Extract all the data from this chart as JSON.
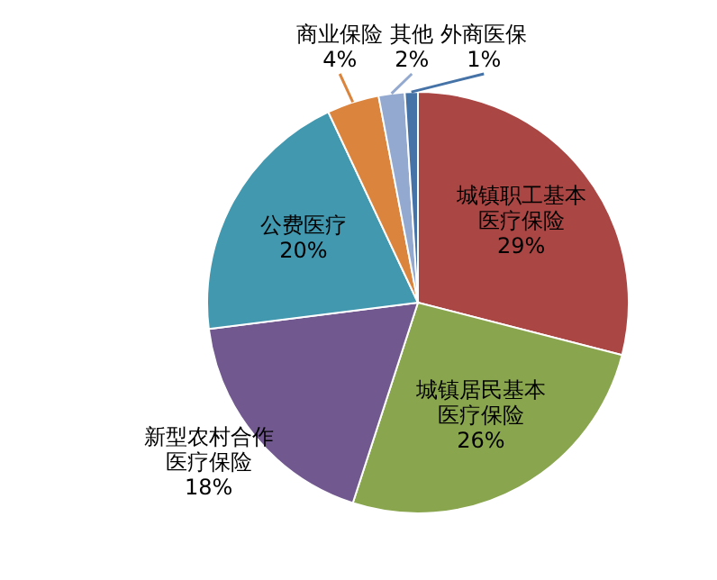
{
  "chart_data": {
    "type": "pie",
    "categories": [
      "城镇职工基本医疗保险",
      "城镇居民基本医疗保险",
      "新型农村合作医疗保险",
      "公费医疗",
      "商业保险",
      "其他",
      "外商医保"
    ],
    "values": [
      29,
      26,
      18,
      20,
      4,
      2,
      1
    ],
    "colors": [
      "#aa4643",
      "#89a54e",
      "#71588f",
      "#4198af",
      "#db843d",
      "#93a9cf",
      "#4572a7"
    ],
    "value_labels": [
      "29%",
      "26%",
      "18%",
      "20%",
      "4%",
      "2%",
      "1%"
    ]
  }
}
